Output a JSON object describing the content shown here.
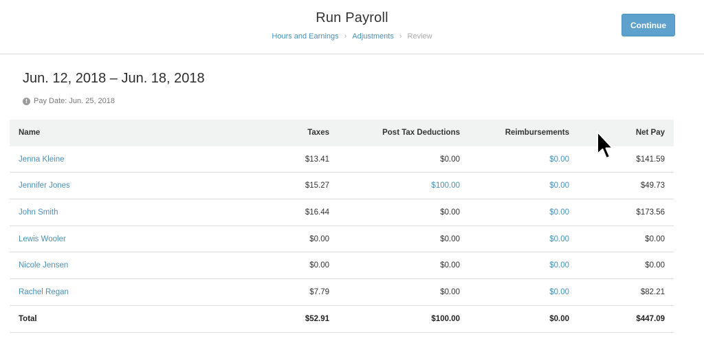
{
  "header": {
    "title": "Run Payroll",
    "breadcrumb": [
      {
        "label": "Hours and Earnings",
        "active": true
      },
      {
        "label": "Adjustments",
        "active": true
      },
      {
        "label": "Review",
        "active": false
      }
    ],
    "continue_label": "Continue"
  },
  "period": {
    "date_range": "Jun. 12, 2018 – Jun. 18, 2018",
    "pay_date_label": "Pay Date: Jun. 25, 2018"
  },
  "table": {
    "columns": [
      "Name",
      "Taxes",
      "Post Tax Deductions",
      "Reimbursements",
      "Net Pay"
    ],
    "rows": [
      {
        "name": "Jenna Kleine",
        "taxes": "$13.41",
        "post_tax_deductions": "$0.00",
        "reimbursements": "$0.00",
        "net_pay": "$141.59"
      },
      {
        "name": "Jennifer Jones",
        "taxes": "$15.27",
        "post_tax_deductions": "$100.00",
        "reimbursements": "$0.00",
        "net_pay": "$49.73"
      },
      {
        "name": "John Smith",
        "taxes": "$16.44",
        "post_tax_deductions": "$0.00",
        "reimbursements": "$0.00",
        "net_pay": "$173.56"
      },
      {
        "name": "Lewis Wooler",
        "taxes": "$0.00",
        "post_tax_deductions": "$0.00",
        "reimbursements": "$0.00",
        "net_pay": "$0.00"
      },
      {
        "name": "Nicole Jensen",
        "taxes": "$0.00",
        "post_tax_deductions": "$0.00",
        "reimbursements": "$0.00",
        "net_pay": "$0.00"
      },
      {
        "name": "Rachel Regan",
        "taxes": "$7.79",
        "post_tax_deductions": "$0.00",
        "reimbursements": "$0.00",
        "net_pay": "$82.21"
      }
    ],
    "total": {
      "label": "Total",
      "taxes": "$52.91",
      "post_tax_deductions": "$100.00",
      "reimbursements": "$0.00",
      "net_pay": "$447.09"
    }
  },
  "colors": {
    "accent": "#5ea1cc",
    "link": "#4a90b8",
    "header_bg": "#f1f2f2"
  },
  "icons": {
    "info": "info-icon",
    "pointer": "mouse-pointer-icon"
  }
}
